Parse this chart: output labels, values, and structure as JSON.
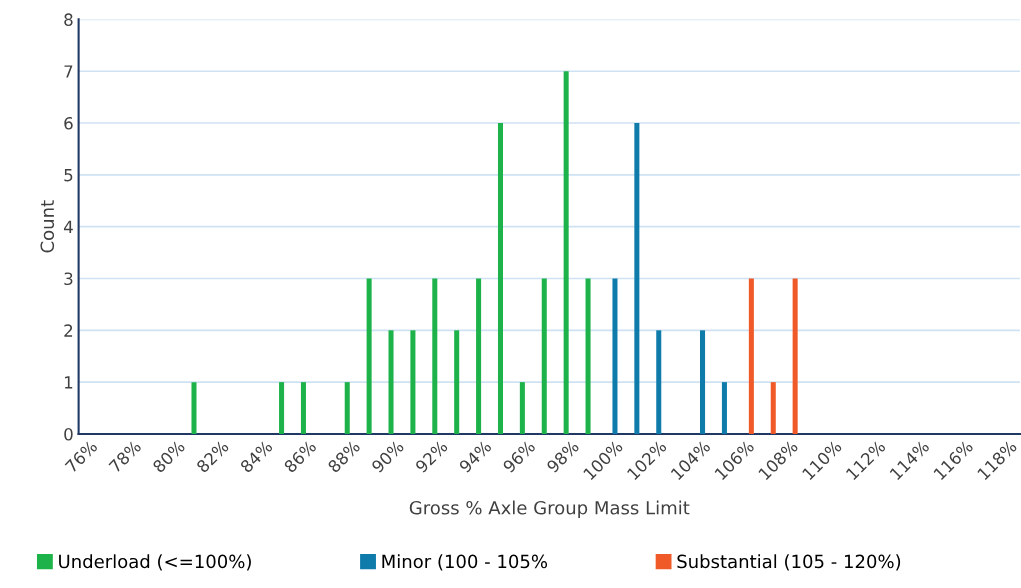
{
  "chart_data": {
    "type": "bar",
    "xlabel": "Gross % Axle Group Mass Limit",
    "ylabel": "Count",
    "categories": [
      "76%",
      null,
      "78%",
      null,
      "80%",
      null,
      "82%",
      null,
      "84%",
      null,
      "86%",
      null,
      "88%",
      null,
      "90%",
      null,
      "92%",
      null,
      "94%",
      null,
      "96%",
      null,
      "98%",
      null,
      "100%",
      null,
      "102%",
      null,
      "104%",
      null,
      "106%",
      null,
      "108%",
      null,
      "110%",
      null,
      "112%",
      null,
      "114%",
      null,
      "116%",
      null,
      "118%"
    ],
    "series": [
      {
        "name": "Underload (<=100%)",
        "color": "#1db34a",
        "values": [
          null,
          null,
          null,
          null,
          null,
          1,
          null,
          null,
          null,
          1,
          1,
          null,
          1,
          3,
          2,
          2,
          3,
          2,
          3,
          6,
          1,
          3,
          7,
          3,
          null,
          null,
          null,
          null,
          null,
          null,
          null,
          null,
          null,
          null,
          null,
          null,
          null,
          null,
          null,
          null,
          null,
          null,
          null
        ]
      },
      {
        "name": "Minor (100 - 105%",
        "color": "#0f7bab",
        "values": [
          null,
          null,
          null,
          null,
          null,
          null,
          null,
          null,
          null,
          null,
          null,
          null,
          null,
          null,
          null,
          null,
          null,
          null,
          null,
          null,
          null,
          null,
          null,
          null,
          3,
          6,
          2,
          null,
          2,
          1,
          null,
          null,
          null,
          null,
          null,
          null,
          null,
          null,
          null,
          null,
          null,
          null,
          null
        ]
      },
      {
        "name": "Substantial (105 - 120%)",
        "color": "#f05a28",
        "values": [
          null,
          null,
          null,
          null,
          null,
          null,
          null,
          null,
          null,
          null,
          null,
          null,
          null,
          null,
          null,
          null,
          null,
          null,
          null,
          null,
          null,
          null,
          null,
          null,
          null,
          null,
          null,
          null,
          null,
          null,
          3,
          1,
          3,
          null,
          null,
          null,
          null,
          null,
          null,
          null,
          null,
          null,
          null
        ]
      }
    ],
    "ylim": [
      0,
      8
    ],
    "yticks": [
      0,
      1,
      2,
      3,
      4,
      5,
      6,
      7,
      8
    ],
    "grid": "y",
    "legend": "bottom"
  }
}
